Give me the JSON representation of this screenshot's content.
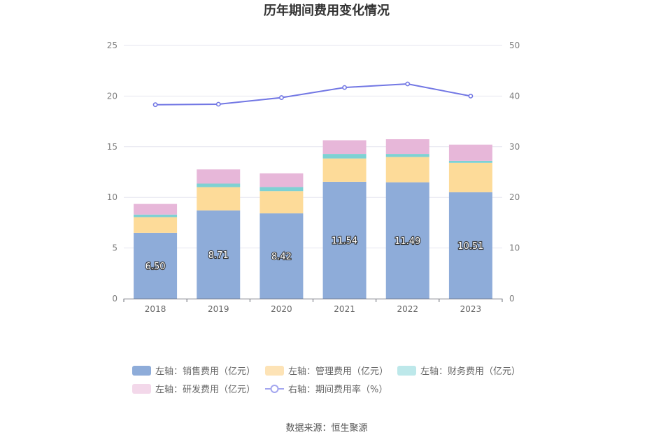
{
  "chart_data": {
    "type": "bar",
    "title": "历年期间费用变化情况",
    "categories": [
      "2018",
      "2019",
      "2020",
      "2021",
      "2022",
      "2023"
    ],
    "series": [
      {
        "name": "左轴：销售费用（亿元）",
        "type": "bar",
        "axis": "left",
        "color": "#8eacd9",
        "values": [
          6.5,
          8.71,
          8.42,
          11.54,
          11.49,
          10.51
        ]
      },
      {
        "name": "左轴：管理费用（亿元）",
        "type": "bar",
        "axis": "left",
        "color": "#fddb99",
        "values": [
          1.55,
          2.3,
          2.2,
          2.3,
          2.5,
          2.9
        ]
      },
      {
        "name": "左轴：财务费用（亿元）",
        "type": "bar",
        "axis": "left",
        "color": "#7ed1d3",
        "values": [
          0.25,
          0.35,
          0.4,
          0.45,
          0.3,
          0.2
        ]
      },
      {
        "name": "左轴：研发费用（亿元）",
        "type": "bar",
        "axis": "left",
        "color": "#e7b7d9",
        "values": [
          1.05,
          1.4,
          1.35,
          1.35,
          1.45,
          1.6
        ]
      },
      {
        "name": "右轴：期间费用率（%）",
        "type": "line",
        "axis": "right",
        "color": "#7277e4",
        "values": [
          38.3,
          38.4,
          39.7,
          41.7,
          42.4,
          40.0
        ]
      }
    ],
    "ylim_left": [
      0,
      25
    ],
    "yticks_left": [
      "0",
      "5",
      "10",
      "15",
      "20",
      "25"
    ],
    "ylim_right": [
      0,
      50
    ],
    "yticks_right": [
      "0",
      "10",
      "20",
      "30",
      "40",
      "50"
    ],
    "data_labels": [
      "6.50",
      "8.71",
      "8.42",
      "11.54",
      "11.49",
      "10.51"
    ],
    "grid": true,
    "legend_position": "bottom"
  },
  "legend_colors": {
    "sales": "#8eacd9",
    "admin": "#fde3b6",
    "finance": "#bde8ea",
    "rd": "#f3d8ea",
    "rate": "#a3a6ef"
  },
  "source": "数据来源：恒生聚源"
}
